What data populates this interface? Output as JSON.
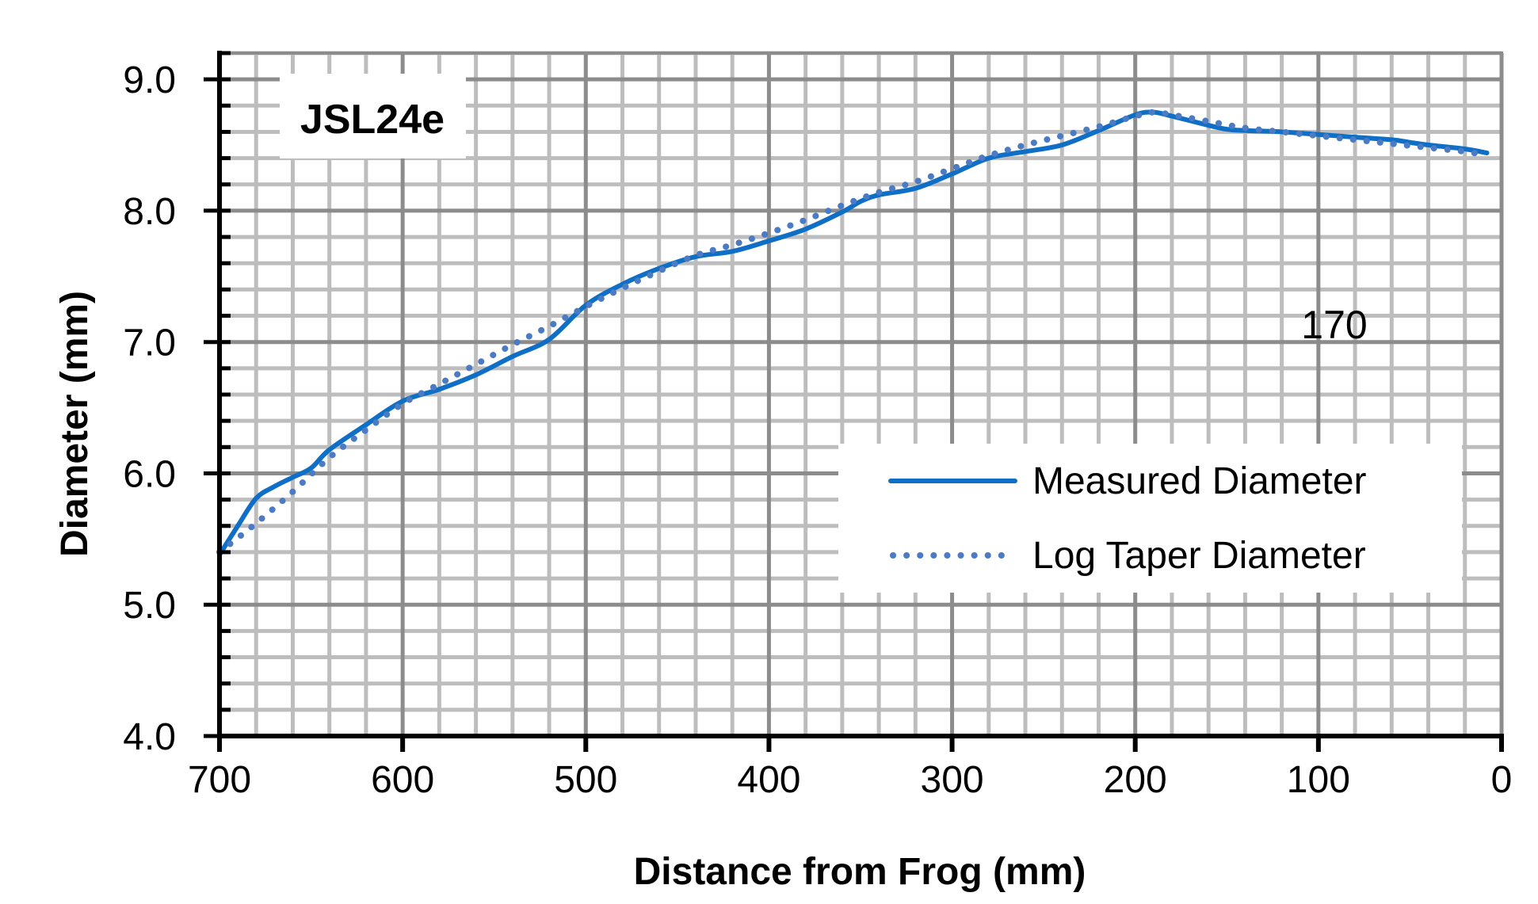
{
  "chart_data": {
    "type": "line",
    "title": "JSL24e",
    "annotation": "170",
    "xlabel": "Distance from Frog (mm)",
    "ylabel": "Diameter (mm)",
    "xlim": [
      700,
      0
    ],
    "ylim": [
      4.0,
      9.2
    ],
    "x_reversed": true,
    "grid": true,
    "x_major_step": 100,
    "x_minor_step": 20,
    "y_major_step": 1.0,
    "y_minor_step": 0.2,
    "x_ticks": [
      "700",
      "600",
      "500",
      "400",
      "300",
      "200",
      "100",
      "0"
    ],
    "y_ticks": [
      "4.0",
      "5.0",
      "6.0",
      "7.0",
      "8.0",
      "9.0"
    ],
    "legend_position": "lower right (inside plot)",
    "series": [
      {
        "name": "Measured Diameter",
        "style": "solid",
        "color": "#0F6FC6",
        "x": [
          700,
          690,
          680,
          670,
          660,
          650,
          640,
          620,
          600,
          580,
          560,
          540,
          520,
          500,
          480,
          460,
          440,
          420,
          400,
          380,
          360,
          350,
          340,
          320,
          300,
          280,
          260,
          240,
          220,
          200,
          190,
          180,
          160,
          150,
          140,
          120,
          100,
          80,
          60,
          50,
          40,
          20,
          8
        ],
        "values": [
          5.38,
          5.6,
          5.81,
          5.9,
          5.97,
          6.04,
          6.18,
          6.37,
          6.55,
          6.64,
          6.75,
          6.89,
          7.02,
          7.28,
          7.44,
          7.56,
          7.65,
          7.69,
          7.77,
          7.86,
          7.99,
          8.07,
          8.12,
          8.17,
          8.28,
          8.4,
          8.45,
          8.5,
          8.61,
          8.73,
          8.75,
          8.72,
          8.65,
          8.62,
          8.61,
          8.6,
          8.58,
          8.56,
          8.54,
          8.52,
          8.5,
          8.47,
          8.44
        ]
      },
      {
        "name": "Log Taper Diameter",
        "style": "dotted",
        "color": "#4A7BC4",
        "x": [
          700,
          680,
          660,
          640,
          620,
          600,
          580,
          560,
          540,
          520,
          500,
          480,
          460,
          440,
          420,
          400,
          380,
          360,
          340,
          320,
          300,
          280,
          260,
          240,
          220,
          200,
          190,
          180,
          160,
          140,
          120,
          100,
          80,
          60,
          40,
          20,
          8
        ],
        "values": [
          5.4,
          5.62,
          5.86,
          6.12,
          6.33,
          6.53,
          6.68,
          6.83,
          6.98,
          7.12,
          7.27,
          7.41,
          7.54,
          7.66,
          7.74,
          7.83,
          7.93,
          8.04,
          8.14,
          8.22,
          8.32,
          8.42,
          8.5,
          8.57,
          8.64,
          8.72,
          8.75,
          8.73,
          8.68,
          8.63,
          8.6,
          8.57,
          8.54,
          8.51,
          8.48,
          8.45,
          8.42
        ]
      }
    ]
  },
  "plot": {
    "title_box_label": "JSL24e",
    "annotation_label": "170",
    "legend": [
      {
        "label": "Measured Diameter"
      },
      {
        "label": "Log Taper Diameter"
      }
    ]
  }
}
